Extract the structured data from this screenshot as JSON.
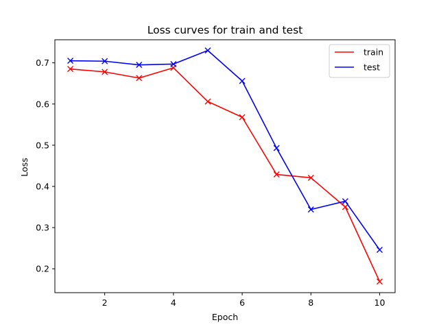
{
  "chart_data": {
    "type": "line",
    "title": "Loss curves for train and test",
    "xlabel": "Epoch",
    "ylabel": "Loss",
    "x": [
      1,
      2,
      3,
      4,
      5,
      6,
      7,
      8,
      9,
      10
    ],
    "xlim": [
      0.55,
      10.45
    ],
    "ylim": [
      0.142,
      0.756
    ],
    "xticks": [
      2,
      4,
      6,
      8,
      10
    ],
    "yticks": [
      0.2,
      0.3,
      0.4,
      0.5,
      0.6,
      0.7
    ],
    "xtick_labels": [
      "2",
      "4",
      "6",
      "8",
      "10"
    ],
    "ytick_labels": [
      "0.2",
      "0.3",
      "0.4",
      "0.5",
      "0.6",
      "0.7"
    ],
    "grid": false,
    "legend_position": "top-right",
    "marker": "x",
    "series": [
      {
        "name": "train",
        "color": "#ff0000",
        "values": [
          0.685,
          0.678,
          0.663,
          0.688,
          0.606,
          0.568,
          0.429,
          0.421,
          0.35,
          0.169
        ]
      },
      {
        "name": "test",
        "color": "#0000ff",
        "values": [
          0.705,
          0.704,
          0.695,
          0.697,
          0.73,
          0.656,
          0.493,
          0.344,
          0.364,
          0.246
        ]
      }
    ]
  }
}
